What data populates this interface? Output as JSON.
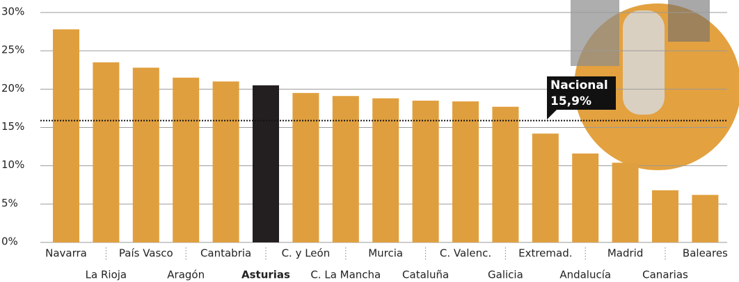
{
  "chart_data": {
    "type": "bar",
    "categories": [
      "Navarra",
      "La Rioja",
      "País Vasco",
      "Aragón",
      "Cantabria",
      "Asturias",
      "C. y León",
      "C. La Mancha",
      "Murcia",
      "Cataluña",
      "C. Valenc.",
      "Galicia",
      "Extremad.",
      "Andalucía",
      "Madrid",
      "Canarias",
      "Baleares"
    ],
    "values": [
      27.8,
      23.5,
      22.8,
      21.5,
      21.0,
      20.5,
      19.5,
      19.1,
      18.8,
      18.5,
      18.4,
      17.7,
      14.2,
      11.6,
      10.4,
      6.8,
      6.2
    ],
    "colors": [
      "#e09f3e",
      "#e09f3e",
      "#e09f3e",
      "#e09f3e",
      "#e09f3e",
      "#231f20",
      "#e09f3e",
      "#e09f3e",
      "#e09f3e",
      "#e09f3e",
      "#e09f3e",
      "#e09f3e",
      "#e09f3e",
      "#e09f3e",
      "#e09f3e",
      "#e09f3e",
      "#e09f3e"
    ],
    "ylim": [
      0,
      30
    ],
    "yticks": [
      {
        "value": 0,
        "label": "0%"
      },
      {
        "value": 5,
        "label": "5%"
      },
      {
        "value": 10,
        "label": "10%"
      },
      {
        "value": 15,
        "label": "15%"
      },
      {
        "value": 20,
        "label": "20%"
      },
      {
        "value": 25,
        "label": "25%"
      },
      {
        "value": 30,
        "label": "30%"
      }
    ],
    "grid": true,
    "reference_line": {
      "label": "Nacional",
      "value": 15.9,
      "value_label": "15,9%"
    }
  }
}
